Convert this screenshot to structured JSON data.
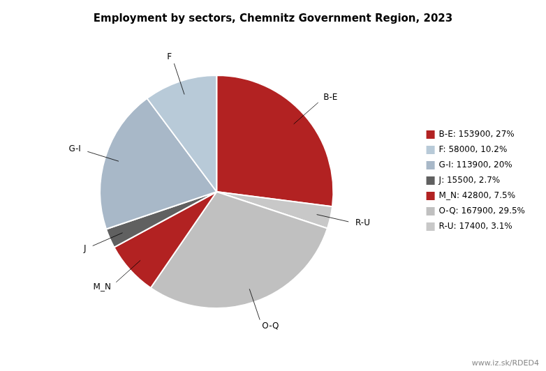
{
  "chart_data": {
    "type": "pie",
    "title": "Employment by sectors, Chemnitz Government Region, 2023",
    "categories": [
      "B-E",
      "R-U",
      "O-Q",
      "M_N",
      "J",
      "G-I",
      "F"
    ],
    "values": [
      153900,
      17400,
      167900,
      42800,
      15500,
      113900,
      58000
    ],
    "colors": [
      "#b22222",
      "#c8c8c8",
      "#c0c0c0",
      "#b22222",
      "#606060",
      "#a8b8c8",
      "#b8cad8"
    ],
    "value_labels": [
      "B-E: 153900, 27%",
      "R-U: 17400, 3.1%",
      "O-Q: 167900, 29.5%",
      "M_N: 42800, 7.5%",
      "J: 15500, 2.7%",
      "G-I: 113900, 20%",
      "F: 58000, 10.2%"
    ],
    "legend": "right",
    "annotations": [
      "www.iz.sk/RDED4"
    ]
  }
}
